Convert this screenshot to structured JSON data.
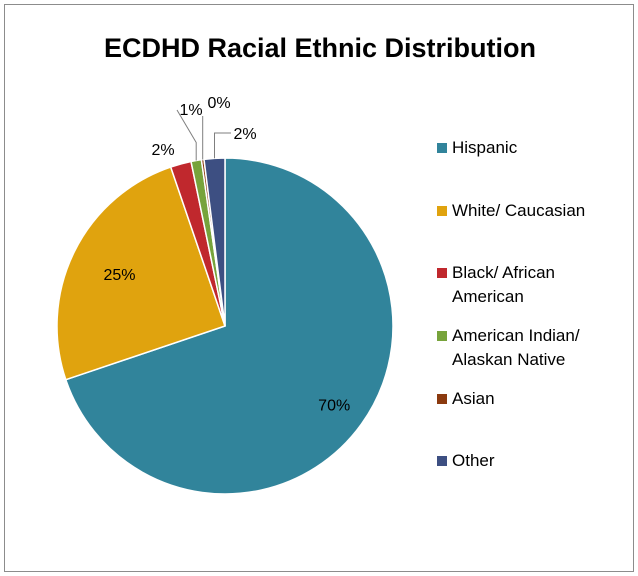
{
  "chart_data": {
    "type": "pie",
    "title": "ECDHD Racial Ethnic Distribution",
    "categories": [
      "Hispanic",
      "White/ Caucasian",
      "Black/ African American",
      "American Indian/ Alaskan Native",
      "Asian",
      "Other"
    ],
    "values": [
      70,
      25,
      2,
      1,
      0,
      2
    ],
    "data_labels": [
      "70%",
      "25%",
      "2%",
      "1%",
      "0%",
      "2%"
    ],
    "legend_lines": [
      [
        "Hispanic"
      ],
      [
        "White/ Caucasian"
      ],
      [
        "Black/ African",
        "American"
      ],
      [
        "American Indian/",
        "Alaskan Native"
      ],
      [
        "Asian"
      ],
      [
        "Other"
      ]
    ],
    "colors": [
      "#31849b",
      "#e0a30e",
      "#c0282d",
      "#77a33b",
      "#8b3a0f",
      "#3d4f82"
    ],
    "legend_position": "right",
    "start_angle": "12 o'clock",
    "direction": "clockwise"
  }
}
